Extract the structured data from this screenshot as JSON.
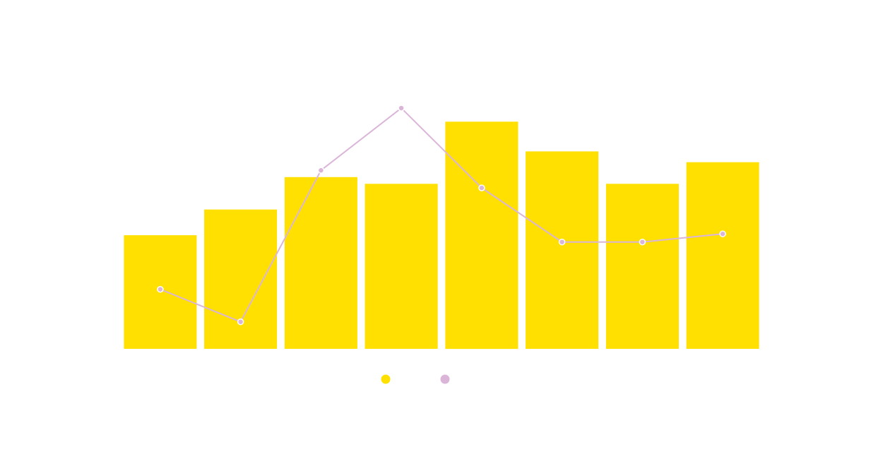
{
  "chart_data": {
    "type": "bar",
    "categories": [
      "",
      "",
      "",
      "",
      "",
      "",
      "",
      ""
    ],
    "series": [
      {
        "kind": "bar",
        "values": [
          42,
          51.5,
          63.5,
          61,
          84,
          73,
          61,
          69
        ]
      },
      {
        "kind": "line",
        "values": [
          22,
          10,
          66,
          89,
          59.5,
          39.5,
          39.5,
          42.5
        ]
      }
    ],
    "ylim": [
      0,
      112
    ],
    "grid": false,
    "legend": "bottom",
    "title": "",
    "xlabel": "",
    "ylabel": ""
  },
  "colors": {
    "bar": "#ffe000",
    "line": "#dbb5d8",
    "marker_fill": "#dbb5d8",
    "marker_stroke": "#ffffff",
    "background": "#ffffff"
  }
}
